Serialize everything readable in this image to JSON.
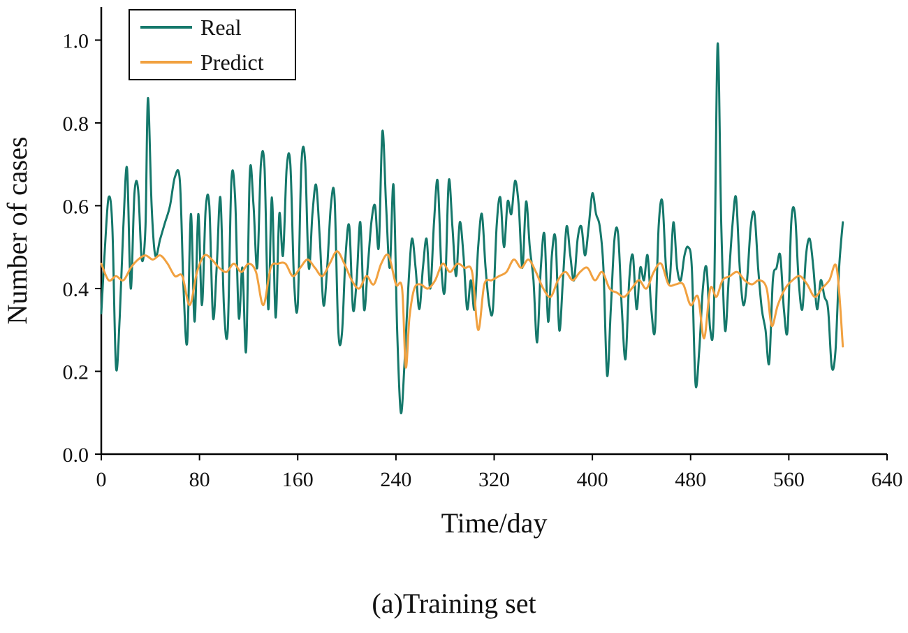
{
  "figure": {
    "caption": "(a)Training set"
  },
  "chart_data": {
    "type": "line",
    "title": "",
    "xlabel": "Time/day",
    "ylabel": "Number of cases",
    "xlim": [
      0,
      640
    ],
    "ylim": [
      0,
      1.08
    ],
    "xticks": [
      0,
      80,
      160,
      240,
      320,
      400,
      480,
      560,
      640
    ],
    "yticks": [
      0.0,
      0.2,
      0.4,
      0.6,
      0.8,
      1.0
    ],
    "ytick_labels": [
      "0.0",
      "0.2",
      "0.4",
      "0.6",
      "0.8",
      "1.0"
    ],
    "grid": false,
    "legend": {
      "position": "top-left",
      "entries": [
        {
          "label": "Real",
          "color": "#15786b"
        },
        {
          "label": "Predict",
          "color": "#f1a140"
        }
      ]
    },
    "series": [
      {
        "name": "Real",
        "color": "#15786b",
        "points": [
          [
            0,
            0.34
          ],
          [
            3,
            0.5
          ],
          [
            6,
            0.62
          ],
          [
            9,
            0.55
          ],
          [
            12,
            0.21
          ],
          [
            15,
            0.33
          ],
          [
            18,
            0.55
          ],
          [
            21,
            0.69
          ],
          [
            24,
            0.4
          ],
          [
            27,
            0.63
          ],
          [
            30,
            0.64
          ],
          [
            33,
            0.47
          ],
          [
            36,
            0.55
          ],
          [
            38,
            0.86
          ],
          [
            41,
            0.6
          ],
          [
            44,
            0.48
          ],
          [
            48,
            0.52
          ],
          [
            52,
            0.56
          ],
          [
            56,
            0.6
          ],
          [
            60,
            0.67
          ],
          [
            64,
            0.66
          ],
          [
            67,
            0.4
          ],
          [
            70,
            0.27
          ],
          [
            73,
            0.58
          ],
          [
            76,
            0.32
          ],
          [
            79,
            0.58
          ],
          [
            82,
            0.36
          ],
          [
            85,
            0.59
          ],
          [
            88,
            0.6
          ],
          [
            91,
            0.33
          ],
          [
            94,
            0.45
          ],
          [
            97,
            0.62
          ],
          [
            100,
            0.35
          ],
          [
            103,
            0.3
          ],
          [
            106,
            0.66
          ],
          [
            109,
            0.62
          ],
          [
            112,
            0.33
          ],
          [
            115,
            0.45
          ],
          [
            118,
            0.25
          ],
          [
            121,
            0.68
          ],
          [
            124,
            0.6
          ],
          [
            127,
            0.45
          ],
          [
            130,
            0.7
          ],
          [
            133,
            0.69
          ],
          [
            136,
            0.35
          ],
          [
            139,
            0.62
          ],
          [
            142,
            0.33
          ],
          [
            145,
            0.58
          ],
          [
            148,
            0.48
          ],
          [
            151,
            0.69
          ],
          [
            154,
            0.7
          ],
          [
            157,
            0.42
          ],
          [
            160,
            0.36
          ],
          [
            163,
            0.7
          ],
          [
            166,
            0.71
          ],
          [
            169,
            0.45
          ],
          [
            172,
            0.58
          ],
          [
            175,
            0.65
          ],
          [
            178,
            0.52
          ],
          [
            181,
            0.36
          ],
          [
            184,
            0.45
          ],
          [
            187,
            0.6
          ],
          [
            190,
            0.62
          ],
          [
            193,
            0.3
          ],
          [
            196,
            0.29
          ],
          [
            199,
            0.48
          ],
          [
            202,
            0.55
          ],
          [
            205,
            0.35
          ],
          [
            208,
            0.42
          ],
          [
            211,
            0.56
          ],
          [
            214,
            0.35
          ],
          [
            217,
            0.45
          ],
          [
            220,
            0.56
          ],
          [
            223,
            0.6
          ],
          [
            226,
            0.5
          ],
          [
            229,
            0.78
          ],
          [
            232,
            0.6
          ],
          [
            235,
            0.45
          ],
          [
            238,
            0.65
          ],
          [
            241,
            0.3
          ],
          [
            244,
            0.1
          ],
          [
            247,
            0.22
          ],
          [
            250,
            0.4
          ],
          [
            253,
            0.52
          ],
          [
            256,
            0.45
          ],
          [
            259,
            0.35
          ],
          [
            262,
            0.45
          ],
          [
            265,
            0.52
          ],
          [
            268,
            0.4
          ],
          [
            271,
            0.56
          ],
          [
            274,
            0.66
          ],
          [
            277,
            0.45
          ],
          [
            280,
            0.4
          ],
          [
            283,
            0.66
          ],
          [
            286,
            0.55
          ],
          [
            289,
            0.43
          ],
          [
            292,
            0.56
          ],
          [
            295,
            0.48
          ],
          [
            298,
            0.35
          ],
          [
            301,
            0.42
          ],
          [
            304,
            0.35
          ],
          [
            307,
            0.5
          ],
          [
            310,
            0.58
          ],
          [
            313,
            0.45
          ],
          [
            316,
            0.36
          ],
          [
            319,
            0.35
          ],
          [
            322,
            0.55
          ],
          [
            325,
            0.62
          ],
          [
            328,
            0.5
          ],
          [
            331,
            0.61
          ],
          [
            334,
            0.58
          ],
          [
            337,
            0.66
          ],
          [
            340,
            0.6
          ],
          [
            343,
            0.45
          ],
          [
            346,
            0.61
          ],
          [
            349,
            0.5
          ],
          [
            352,
            0.42
          ],
          [
            355,
            0.27
          ],
          [
            358,
            0.45
          ],
          [
            361,
            0.53
          ],
          [
            364,
            0.32
          ],
          [
            367,
            0.48
          ],
          [
            370,
            0.52
          ],
          [
            373,
            0.3
          ],
          [
            376,
            0.42
          ],
          [
            379,
            0.55
          ],
          [
            382,
            0.48
          ],
          [
            385,
            0.42
          ],
          [
            388,
            0.52
          ],
          [
            391,
            0.55
          ],
          [
            394,
            0.48
          ],
          [
            397,
            0.55
          ],
          [
            400,
            0.63
          ],
          [
            403,
            0.58
          ],
          [
            406,
            0.55
          ],
          [
            409,
            0.45
          ],
          [
            412,
            0.19
          ],
          [
            415,
            0.35
          ],
          [
            418,
            0.52
          ],
          [
            421,
            0.53
          ],
          [
            424,
            0.35
          ],
          [
            427,
            0.23
          ],
          [
            430,
            0.42
          ],
          [
            433,
            0.48
          ],
          [
            436,
            0.35
          ],
          [
            439,
            0.45
          ],
          [
            442,
            0.42
          ],
          [
            445,
            0.48
          ],
          [
            448,
            0.35
          ],
          [
            451,
            0.3
          ],
          [
            454,
            0.55
          ],
          [
            457,
            0.61
          ],
          [
            460,
            0.45
          ],
          [
            463,
            0.42
          ],
          [
            466,
            0.56
          ],
          [
            469,
            0.45
          ],
          [
            472,
            0.42
          ],
          [
            475,
            0.48
          ],
          [
            478,
            0.5
          ],
          [
            481,
            0.45
          ],
          [
            484,
            0.17
          ],
          [
            487,
            0.25
          ],
          [
            490,
            0.4
          ],
          [
            493,
            0.45
          ],
          [
            496,
            0.3
          ],
          [
            499,
            0.35
          ],
          [
            502,
            0.99
          ],
          [
            505,
            0.55
          ],
          [
            508,
            0.3
          ],
          [
            511,
            0.42
          ],
          [
            514,
            0.55
          ],
          [
            517,
            0.62
          ],
          [
            520,
            0.45
          ],
          [
            523,
            0.36
          ],
          [
            526,
            0.42
          ],
          [
            529,
            0.55
          ],
          [
            532,
            0.58
          ],
          [
            535,
            0.45
          ],
          [
            538,
            0.35
          ],
          [
            541,
            0.3
          ],
          [
            544,
            0.22
          ],
          [
            547,
            0.42
          ],
          [
            550,
            0.45
          ],
          [
            553,
            0.48
          ],
          [
            556,
            0.35
          ],
          [
            559,
            0.3
          ],
          [
            562,
            0.56
          ],
          [
            565,
            0.58
          ],
          [
            568,
            0.42
          ],
          [
            571,
            0.35
          ],
          [
            574,
            0.48
          ],
          [
            577,
            0.52
          ],
          [
            580,
            0.45
          ],
          [
            583,
            0.35
          ],
          [
            586,
            0.42
          ],
          [
            589,
            0.38
          ],
          [
            592,
            0.35
          ],
          [
            595,
            0.21
          ],
          [
            598,
            0.25
          ],
          [
            601,
            0.45
          ],
          [
            604,
            0.56
          ]
        ]
      },
      {
        "name": "Predict",
        "color": "#f1a140",
        "points": [
          [
            0,
            0.46
          ],
          [
            6,
            0.42
          ],
          [
            12,
            0.43
          ],
          [
            18,
            0.42
          ],
          [
            24,
            0.45
          ],
          [
            30,
            0.47
          ],
          [
            36,
            0.48
          ],
          [
            42,
            0.47
          ],
          [
            48,
            0.48
          ],
          [
            54,
            0.46
          ],
          [
            60,
            0.43
          ],
          [
            66,
            0.43
          ],
          [
            72,
            0.36
          ],
          [
            78,
            0.44
          ],
          [
            84,
            0.48
          ],
          [
            90,
            0.47
          ],
          [
            96,
            0.45
          ],
          [
            102,
            0.44
          ],
          [
            108,
            0.46
          ],
          [
            114,
            0.44
          ],
          [
            120,
            0.46
          ],
          [
            126,
            0.44
          ],
          [
            132,
            0.36
          ],
          [
            138,
            0.45
          ],
          [
            144,
            0.46
          ],
          [
            150,
            0.46
          ],
          [
            156,
            0.43
          ],
          [
            162,
            0.45
          ],
          [
            168,
            0.47
          ],
          [
            174,
            0.45
          ],
          [
            180,
            0.43
          ],
          [
            186,
            0.46
          ],
          [
            192,
            0.49
          ],
          [
            198,
            0.46
          ],
          [
            204,
            0.42
          ],
          [
            210,
            0.4
          ],
          [
            216,
            0.43
          ],
          [
            222,
            0.41
          ],
          [
            228,
            0.46
          ],
          [
            234,
            0.48
          ],
          [
            240,
            0.41
          ],
          [
            245,
            0.4
          ],
          [
            248,
            0.21
          ],
          [
            251,
            0.33
          ],
          [
            255,
            0.4
          ],
          [
            260,
            0.41
          ],
          [
            266,
            0.4
          ],
          [
            272,
            0.42
          ],
          [
            278,
            0.46
          ],
          [
            284,
            0.44
          ],
          [
            290,
            0.46
          ],
          [
            296,
            0.45
          ],
          [
            302,
            0.44
          ],
          [
            307,
            0.3
          ],
          [
            312,
            0.41
          ],
          [
            318,
            0.42
          ],
          [
            324,
            0.43
          ],
          [
            330,
            0.44
          ],
          [
            336,
            0.47
          ],
          [
            342,
            0.45
          ],
          [
            348,
            0.47
          ],
          [
            354,
            0.44
          ],
          [
            360,
            0.4
          ],
          [
            366,
            0.38
          ],
          [
            372,
            0.42
          ],
          [
            378,
            0.44
          ],
          [
            384,
            0.42
          ],
          [
            390,
            0.44
          ],
          [
            396,
            0.45
          ],
          [
            402,
            0.42
          ],
          [
            408,
            0.44
          ],
          [
            414,
            0.4
          ],
          [
            420,
            0.39
          ],
          [
            426,
            0.38
          ],
          [
            432,
            0.4
          ],
          [
            438,
            0.42
          ],
          [
            444,
            0.4
          ],
          [
            450,
            0.44
          ],
          [
            456,
            0.46
          ],
          [
            462,
            0.41
          ],
          [
            468,
            0.41
          ],
          [
            474,
            0.41
          ],
          [
            480,
            0.36
          ],
          [
            486,
            0.38
          ],
          [
            491,
            0.28
          ],
          [
            496,
            0.4
          ],
          [
            501,
            0.38
          ],
          [
            506,
            0.42
          ],
          [
            512,
            0.43
          ],
          [
            518,
            0.44
          ],
          [
            524,
            0.42
          ],
          [
            530,
            0.41
          ],
          [
            536,
            0.42
          ],
          [
            542,
            0.4
          ],
          [
            546,
            0.31
          ],
          [
            551,
            0.36
          ],
          [
            557,
            0.4
          ],
          [
            563,
            0.42
          ],
          [
            569,
            0.43
          ],
          [
            575,
            0.41
          ],
          [
            581,
            0.38
          ],
          [
            587,
            0.4
          ],
          [
            593,
            0.42
          ],
          [
            599,
            0.45
          ],
          [
            604,
            0.26
          ]
        ]
      }
    ]
  }
}
